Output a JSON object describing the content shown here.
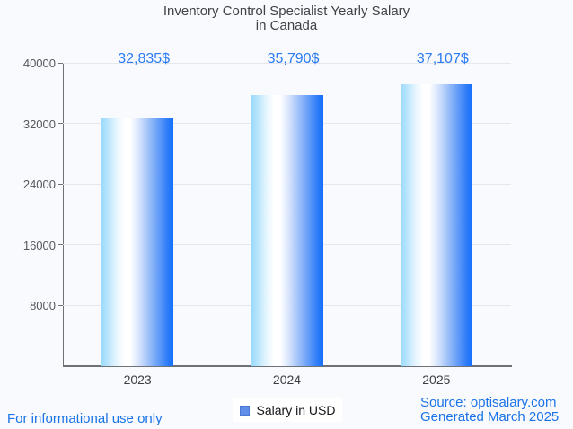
{
  "title": {
    "line1": "Inventory Control Specialist Yearly Salary",
    "line2": "in Canada"
  },
  "chart_data": {
    "type": "bar",
    "title": "Inventory Control Specialist Yearly Salary in Canada",
    "categories": [
      "2023",
      "2024",
      "2025"
    ],
    "values": [
      32835,
      35790,
      37107
    ],
    "value_labels": [
      "32,835$",
      "35,790$",
      "37,107$"
    ],
    "series": [
      {
        "name": "Salary in USD",
        "values": [
          32835,
          35790,
          37107
        ]
      }
    ],
    "xlabel": "",
    "ylabel": "",
    "ylim": [
      0,
      40000
    ],
    "yticks": [
      40000,
      32000,
      24000,
      16000,
      8000
    ],
    "grid": true,
    "legend_position": "bottom"
  },
  "legend": {
    "label": "Salary in USD",
    "swatch_color": "#5f8fe8"
  },
  "footer": {
    "left": "For informational use only",
    "source": "Source: optisalary.com",
    "generated": "Generated March 2025"
  },
  "colors": {
    "background": "#f8fafd",
    "title_text": "#3f4347",
    "value_label_blue": "#2b7bf4",
    "footer_blue": "#1a73e8",
    "axis_gray": "#6e7276",
    "gridline_gray": "#e5e7ea",
    "bar_gradient_left": "#99d9fc",
    "bar_gradient_middle": "#ffffff",
    "bar_gradient_right": "#126efb"
  }
}
